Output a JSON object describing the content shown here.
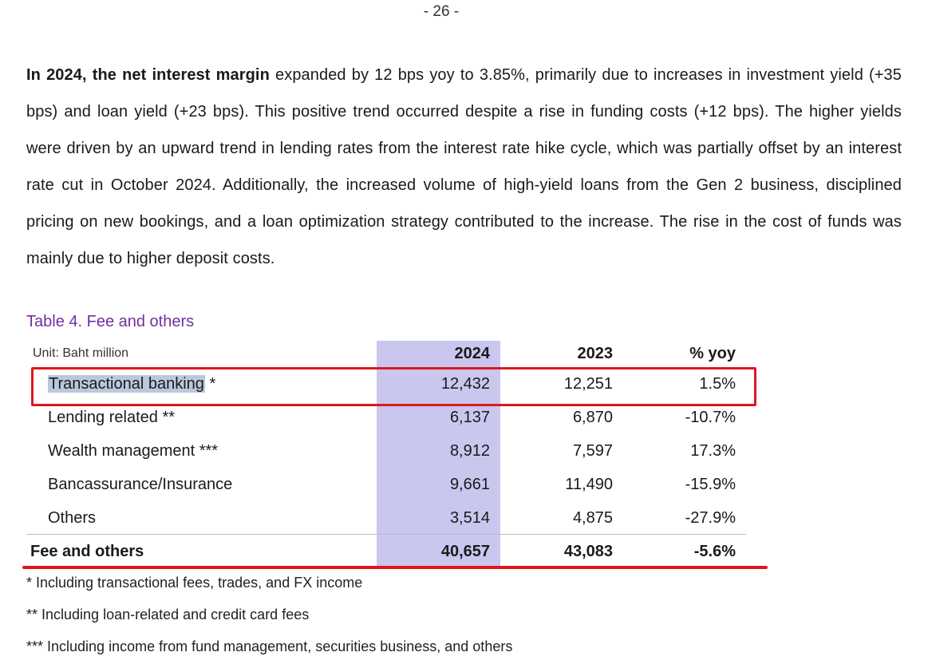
{
  "page_number": "- 26 -",
  "paragraph": {
    "bold_lead": "In 2024, the net interest margin",
    "rest": " expanded by 12 bps yoy to 3.85%, primarily due to increases in investment yield (+35 bps) and loan yield (+23 bps). This positive trend occurred despite a rise in funding costs (+12 bps). The higher yields were driven by an upward trend in lending rates from the interest rate hike cycle, which was partially offset by an interest rate cut in October 2024. Additionally, the increased volume of high-yield loans from the Gen 2 business, disciplined pricing on new bookings, and a loan optimization strategy contributed to the increase. The rise in the cost of funds was mainly due to higher deposit costs."
  },
  "table": {
    "caption": "Table 4. Fee and others",
    "unit": "Unit: Baht million",
    "columns": [
      "2024",
      "2023",
      "% yoy"
    ],
    "rows": [
      {
        "label": "Transactional banking *",
        "v2024": "12,432",
        "v2023": "12,251",
        "yoy": "1.5%"
      },
      {
        "label": "Lending related **",
        "v2024": "6,137",
        "v2023": "6,870",
        "yoy": "-10.7%"
      },
      {
        "label": "Wealth management ***",
        "v2024": "8,912",
        "v2023": "7,597",
        "yoy": "17.3%"
      },
      {
        "label": "Bancassurance/Insurance",
        "v2024": "9,661",
        "v2023": "11,490",
        "yoy": "-15.9%"
      },
      {
        "label": "Others",
        "v2024": "3,514",
        "v2023": "4,875",
        "yoy": "-27.9%"
      }
    ],
    "total": {
      "label": "Fee and others",
      "v2024": "40,657",
      "v2023": "43,083",
      "yoy": "-5.6%"
    },
    "highlight_color": "#c9c7ee",
    "annotation_color": "#e0161e"
  },
  "footnotes": [
    "* Including transactional fees, trades, and FX income",
    "** Including loan-related and credit card fees",
    "*** Including income from fund management, securities business, and others"
  ]
}
